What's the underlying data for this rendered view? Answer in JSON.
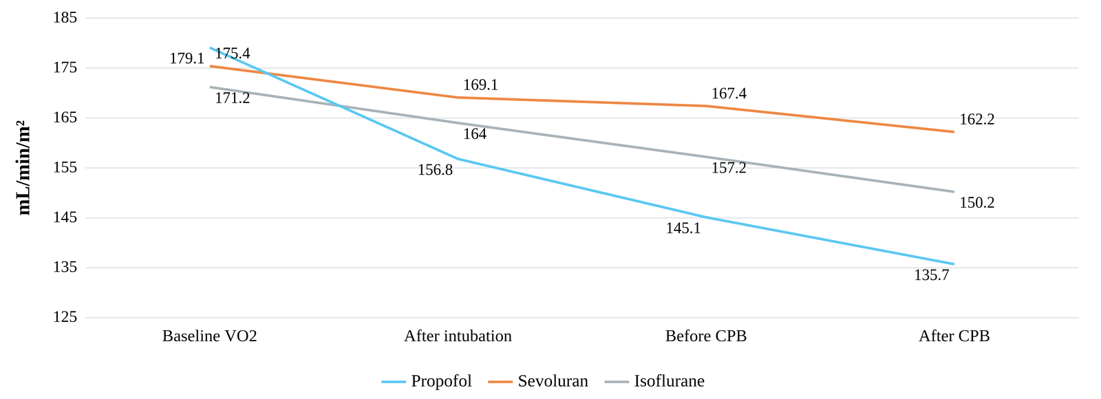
{
  "chart_data": {
    "type": "line",
    "categories": [
      "Baseline VO2",
      "After intubation",
      "Before CPB",
      "After CPB"
    ],
    "y_label": "mL/min/m²",
    "series": [
      {
        "name": "Propofol",
        "color": "#5cc8f2",
        "values": [
          179.1,
          156.8,
          145.1,
          135.7
        ]
      },
      {
        "name": "Sevoluran",
        "color": "#ed8945",
        "values": [
          175.4,
          169.1,
          167.4,
          162.2
        ]
      },
      {
        "name": "Isoflurane",
        "color": "#a9b4b9",
        "values": [
          171.2,
          164,
          157.2,
          150.2
        ]
      }
    ],
    "ylim": [
      125,
      185
    ],
    "yticks": [
      125,
      135,
      145,
      155,
      165,
      175,
      185
    ],
    "grid": true,
    "legend": "bottom",
    "data_labels": true
  }
}
